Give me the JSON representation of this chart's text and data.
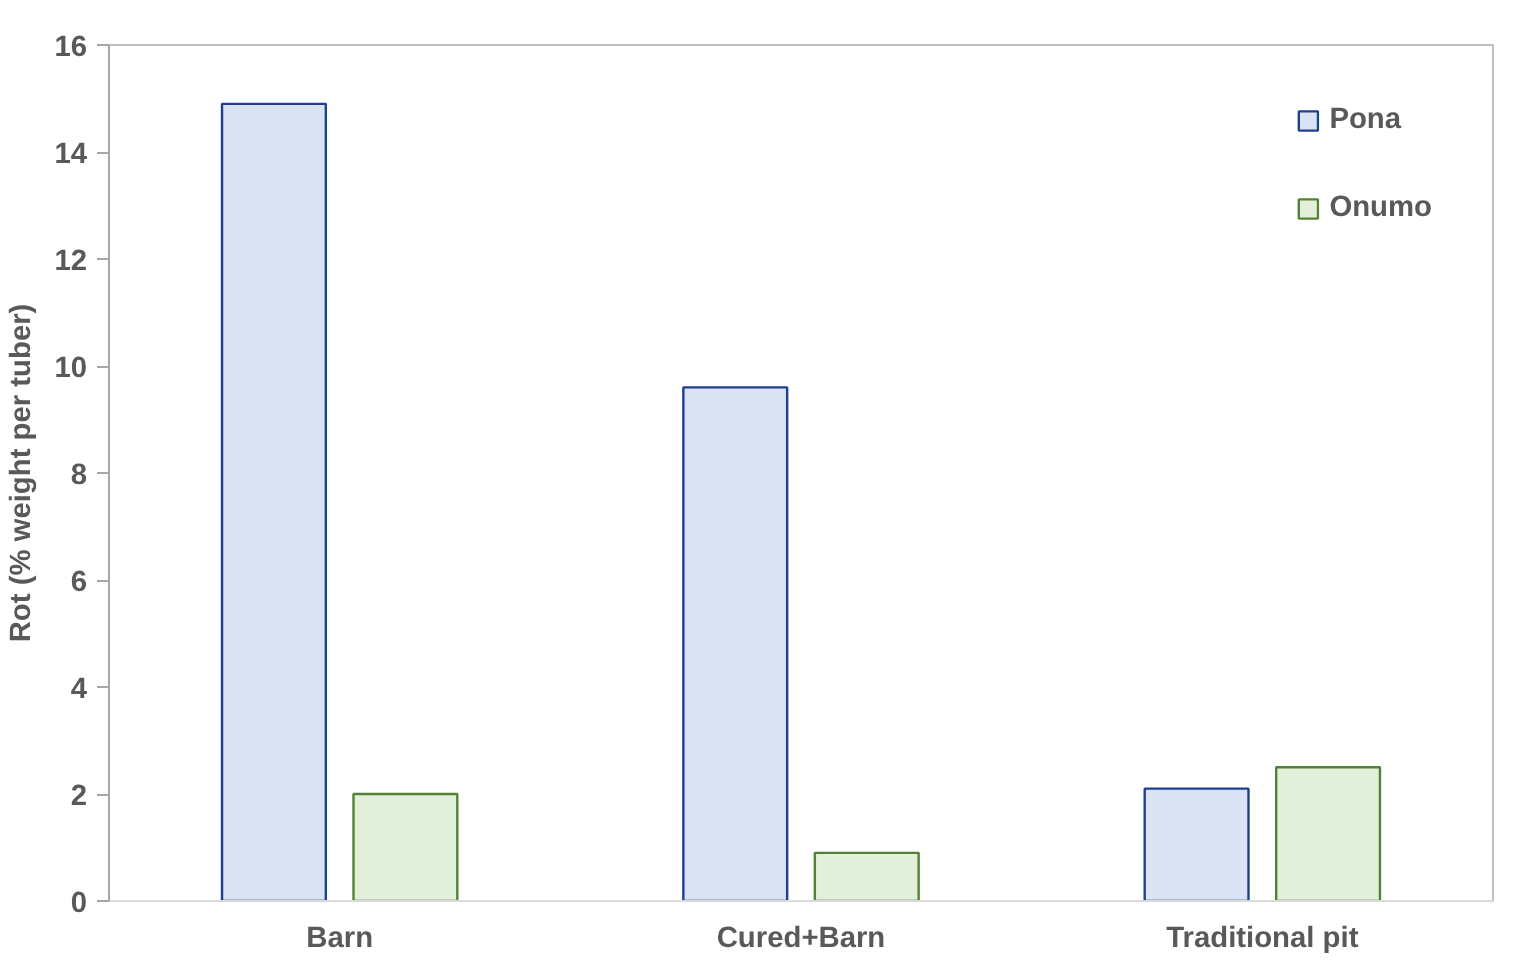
{
  "chart_data": {
    "type": "bar",
    "ylabel": "Rot (% weight per tuber)",
    "categories": [
      "Barn",
      "Cured+Barn",
      "Traditional pit"
    ],
    "series": [
      {
        "name": "Pona",
        "color": "#dae3f3",
        "values": [
          14.9,
          9.6,
          2.1
        ]
      },
      {
        "name": "Onumo",
        "color": "#e2efda",
        "values": [
          2.0,
          0.9,
          2.5
        ]
      }
    ],
    "ylim": [
      0,
      16
    ],
    "yticks": [
      0,
      2,
      4,
      6,
      8,
      10,
      12,
      14,
      16
    ],
    "grid": false,
    "legend": "top right"
  }
}
